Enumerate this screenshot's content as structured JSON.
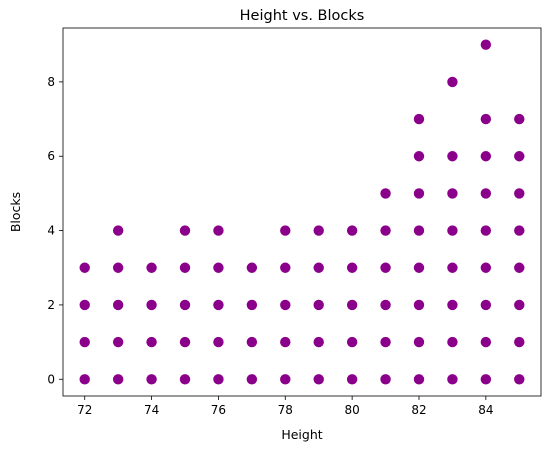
{
  "chart_data": {
    "type": "scatter",
    "title": "Height vs. Blocks",
    "xlabel": "Height",
    "ylabel": "Blocks",
    "xlim": [
      71.35,
      85.65
    ],
    "ylim": [
      -0.45,
      9.45
    ],
    "xticks": [
      72,
      74,
      76,
      78,
      80,
      82,
      84
    ],
    "yticks": [
      0,
      2,
      4,
      6,
      8
    ],
    "marker_color": "#8B008B",
    "grid": false,
    "points": [
      {
        "x": 72,
        "y": 0
      },
      {
        "x": 72,
        "y": 1
      },
      {
        "x": 72,
        "y": 2
      },
      {
        "x": 72,
        "y": 3
      },
      {
        "x": 73,
        "y": 0
      },
      {
        "x": 73,
        "y": 1
      },
      {
        "x": 73,
        "y": 2
      },
      {
        "x": 73,
        "y": 3
      },
      {
        "x": 73,
        "y": 4
      },
      {
        "x": 74,
        "y": 0
      },
      {
        "x": 74,
        "y": 1
      },
      {
        "x": 74,
        "y": 2
      },
      {
        "x": 74,
        "y": 3
      },
      {
        "x": 75,
        "y": 0
      },
      {
        "x": 75,
        "y": 1
      },
      {
        "x": 75,
        "y": 2
      },
      {
        "x": 75,
        "y": 3
      },
      {
        "x": 75,
        "y": 4
      },
      {
        "x": 76,
        "y": 0
      },
      {
        "x": 76,
        "y": 1
      },
      {
        "x": 76,
        "y": 2
      },
      {
        "x": 76,
        "y": 3
      },
      {
        "x": 76,
        "y": 4
      },
      {
        "x": 77,
        "y": 0
      },
      {
        "x": 77,
        "y": 1
      },
      {
        "x": 77,
        "y": 2
      },
      {
        "x": 77,
        "y": 3
      },
      {
        "x": 78,
        "y": 0
      },
      {
        "x": 78,
        "y": 1
      },
      {
        "x": 78,
        "y": 2
      },
      {
        "x": 78,
        "y": 3
      },
      {
        "x": 78,
        "y": 4
      },
      {
        "x": 79,
        "y": 0
      },
      {
        "x": 79,
        "y": 1
      },
      {
        "x": 79,
        "y": 2
      },
      {
        "x": 79,
        "y": 3
      },
      {
        "x": 79,
        "y": 4
      },
      {
        "x": 80,
        "y": 0
      },
      {
        "x": 80,
        "y": 1
      },
      {
        "x": 80,
        "y": 2
      },
      {
        "x": 80,
        "y": 3
      },
      {
        "x": 80,
        "y": 4
      },
      {
        "x": 81,
        "y": 0
      },
      {
        "x": 81,
        "y": 1
      },
      {
        "x": 81,
        "y": 2
      },
      {
        "x": 81,
        "y": 3
      },
      {
        "x": 81,
        "y": 4
      },
      {
        "x": 81,
        "y": 5
      },
      {
        "x": 82,
        "y": 0
      },
      {
        "x": 82,
        "y": 1
      },
      {
        "x": 82,
        "y": 2
      },
      {
        "x": 82,
        "y": 3
      },
      {
        "x": 82,
        "y": 4
      },
      {
        "x": 82,
        "y": 5
      },
      {
        "x": 82,
        "y": 6
      },
      {
        "x": 82,
        "y": 7
      },
      {
        "x": 83,
        "y": 0
      },
      {
        "x": 83,
        "y": 1
      },
      {
        "x": 83,
        "y": 2
      },
      {
        "x": 83,
        "y": 3
      },
      {
        "x": 83,
        "y": 4
      },
      {
        "x": 83,
        "y": 5
      },
      {
        "x": 83,
        "y": 6
      },
      {
        "x": 83,
        "y": 8
      },
      {
        "x": 84,
        "y": 0
      },
      {
        "x": 84,
        "y": 1
      },
      {
        "x": 84,
        "y": 2
      },
      {
        "x": 84,
        "y": 3
      },
      {
        "x": 84,
        "y": 4
      },
      {
        "x": 84,
        "y": 5
      },
      {
        "x": 84,
        "y": 6
      },
      {
        "x": 84,
        "y": 7
      },
      {
        "x": 84,
        "y": 9
      },
      {
        "x": 85,
        "y": 0
      },
      {
        "x": 85,
        "y": 1
      },
      {
        "x": 85,
        "y": 2
      },
      {
        "x": 85,
        "y": 3
      },
      {
        "x": 85,
        "y": 4
      },
      {
        "x": 85,
        "y": 5
      },
      {
        "x": 85,
        "y": 6
      },
      {
        "x": 85,
        "y": 7
      }
    ]
  }
}
